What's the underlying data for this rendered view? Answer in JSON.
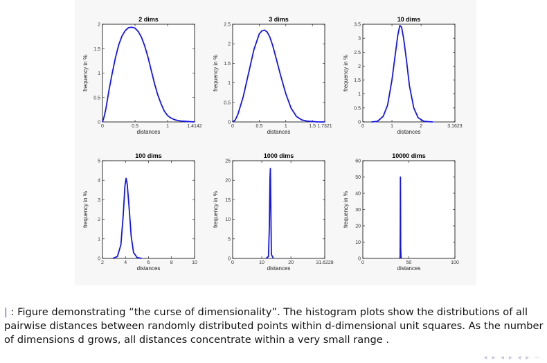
{
  "caption": {
    "marker": "|",
    "text": " : Figure demonstrating “the curse of dimensionality”. The histogram plots show the distributions of all pairwise distances between randomly distributed points within d-dimensional unit squares. As the number of dimensions d grows, all distances concentrate within a very small range ."
  },
  "colors": {
    "line": "#1515e8",
    "axes": "#000000",
    "panel": "#f7f7f7"
  },
  "chart_data": [
    {
      "type": "line",
      "title": "2 dims",
      "xlabel": "distances",
      "ylabel": "frequency in %",
      "xlim": [
        0,
        1.4142
      ],
      "ylim": [
        0,
        2
      ],
      "xticks": [
        0,
        0.5,
        1,
        1.4142
      ],
      "xtick_labels": [
        "0",
        "0.5",
        "1",
        "1.4142"
      ],
      "yticks": [
        0,
        0.5,
        1,
        1.5,
        2
      ],
      "ytick_labels": [
        "0",
        "0.5",
        "1",
        "1.5",
        "2"
      ],
      "x": [
        0,
        0.02,
        0.05,
        0.1,
        0.15,
        0.2,
        0.25,
        0.3,
        0.35,
        0.4,
        0.45,
        0.5,
        0.55,
        0.6,
        0.65,
        0.7,
        0.75,
        0.8,
        0.85,
        0.9,
        0.95,
        1.0,
        1.05,
        1.1,
        1.15,
        1.2,
        1.3,
        1.4142
      ],
      "y": [
        0,
        0.08,
        0.25,
        0.65,
        1.0,
        1.32,
        1.58,
        1.76,
        1.87,
        1.93,
        1.94,
        1.92,
        1.85,
        1.73,
        1.55,
        1.32,
        1.05,
        0.78,
        0.55,
        0.37,
        0.22,
        0.13,
        0.08,
        0.05,
        0.03,
        0.02,
        0.01,
        0
      ]
    },
    {
      "type": "line",
      "title": "3 dims",
      "xlabel": "distances",
      "ylabel": "frequency in %",
      "xlim": [
        0,
        1.7321
      ],
      "ylim": [
        0,
        2.5
      ],
      "xticks": [
        0,
        0.5,
        1,
        1.5,
        1.7321
      ],
      "xtick_labels": [
        "0",
        "0.5",
        "1",
        "1.5",
        "1.7321"
      ],
      "yticks": [
        0,
        0.5,
        1,
        1.5,
        2,
        2.5
      ],
      "ytick_labels": [
        "0",
        "0.5",
        "1",
        "1.5",
        "2",
        "2.5"
      ],
      "x": [
        0,
        0.05,
        0.1,
        0.2,
        0.3,
        0.4,
        0.5,
        0.55,
        0.6,
        0.65,
        0.7,
        0.75,
        0.8,
        0.9,
        1.0,
        1.1,
        1.2,
        1.3,
        1.4,
        1.5,
        1.6,
        1.7321
      ],
      "y": [
        0,
        0.05,
        0.2,
        0.65,
        1.25,
        1.85,
        2.25,
        2.33,
        2.35,
        2.3,
        2.17,
        1.97,
        1.72,
        1.2,
        0.72,
        0.35,
        0.14,
        0.05,
        0.02,
        0.01,
        0,
        0
      ]
    },
    {
      "type": "line",
      "title": "10 dims",
      "xlabel": "distances",
      "ylabel": "frequency in %",
      "xlim": [
        0,
        3.1623
      ],
      "ylim": [
        0,
        3.5
      ],
      "xticks": [
        0,
        1,
        2,
        3.1623
      ],
      "xtick_labels": [
        "0",
        "1",
        "2",
        "3.1623"
      ],
      "yticks": [
        0,
        0.5,
        1,
        1.5,
        2,
        2.5,
        3,
        3.5
      ],
      "ytick_labels": [
        "0",
        "0.5",
        "1",
        "1.5",
        "2",
        "2.5",
        "3",
        "3.5"
      ],
      "x": [
        0.3,
        0.5,
        0.7,
        0.85,
        1.0,
        1.1,
        1.2,
        1.27,
        1.33,
        1.4,
        1.5,
        1.6,
        1.75,
        1.9,
        2.1,
        2.4
      ],
      "y": [
        0,
        0.02,
        0.2,
        0.6,
        1.5,
        2.3,
        3.1,
        3.45,
        3.4,
        3.0,
        2.2,
        1.3,
        0.5,
        0.15,
        0.02,
        0
      ]
    },
    {
      "type": "line",
      "title": "100 dims",
      "xlabel": "distances",
      "ylabel": "frequency in %",
      "xlim": [
        2,
        10
      ],
      "ylim": [
        0,
        5
      ],
      "xticks": [
        2,
        4,
        6,
        8,
        10
      ],
      "xtick_labels": [
        "2",
        "4",
        "6",
        "8",
        "10"
      ],
      "yticks": [
        0,
        1,
        2,
        3,
        4,
        5
      ],
      "ytick_labels": [
        "0",
        "1",
        "2",
        "3",
        "4",
        "5"
      ],
      "x": [
        2.9,
        3.3,
        3.6,
        3.8,
        3.95,
        4.05,
        4.15,
        4.3,
        4.5,
        4.7,
        5.0,
        5.4
      ],
      "y": [
        0,
        0.1,
        0.7,
        2.2,
        3.7,
        4.1,
        3.8,
        2.7,
        1.1,
        0.3,
        0.05,
        0
      ]
    },
    {
      "type": "line",
      "title": "1000 dims",
      "xlabel": "distances",
      "ylabel": "frequency in %",
      "xlim": [
        0,
        31.6228
      ],
      "ylim": [
        0,
        25
      ],
      "xticks": [
        0,
        10,
        20,
        31.6228
      ],
      "xtick_labels": [
        "0",
        "10",
        "20",
        "31.6228"
      ],
      "yticks": [
        0,
        5,
        10,
        15,
        20,
        25
      ],
      "ytick_labels": [
        "0",
        "5",
        "10",
        "15",
        "20",
        "25"
      ],
      "x": [
        11.5,
        12.3,
        12.6,
        12.8,
        12.95,
        13.1,
        13.3,
        14.0
      ],
      "y": [
        0,
        0.5,
        8,
        20,
        23,
        14,
        1,
        0
      ]
    },
    {
      "type": "line",
      "title": "10000 dims",
      "xlabel": "distances",
      "ylabel": "frequency in %",
      "xlim": [
        0,
        100
      ],
      "ylim": [
        0,
        60
      ],
      "xticks": [
        0,
        50,
        100
      ],
      "xtick_labels": [
        "0",
        "50",
        "100"
      ],
      "yticks": [
        0,
        10,
        20,
        30,
        40,
        50,
        60
      ],
      "ytick_labels": [
        "0",
        "10",
        "20",
        "30",
        "40",
        "50",
        "60"
      ],
      "x": [
        40.0,
        40.5,
        40.7,
        40.82,
        40.95,
        41.1,
        41.5,
        42.0
      ],
      "y": [
        0,
        1,
        20,
        50,
        38,
        6,
        0.5,
        0
      ]
    }
  ]
}
